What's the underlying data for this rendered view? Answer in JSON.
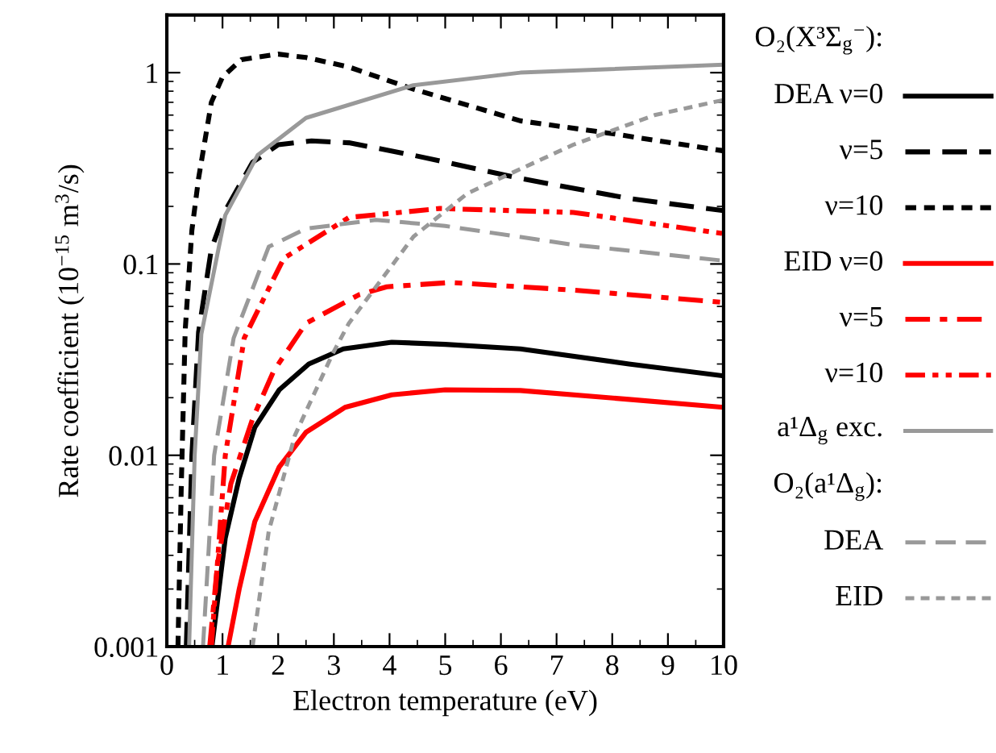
{
  "chart_data": {
    "type": "line",
    "xlabel": "Electron temperature (eV)",
    "ylabel": "Rate coefficient (10$^{−15}$ m$^{3}$/s)",
    "log": "y",
    "xlim": [
      0,
      10
    ],
    "ylim": [
      0.001,
      2.0
    ],
    "xticks": [
      0,
      1,
      2,
      3,
      4,
      5,
      6,
      7,
      8,
      9,
      10
    ],
    "yticks": [
      0.001,
      0.01,
      0.1,
      1
    ],
    "grid": false,
    "legend": "right",
    "marker": "none",
    "annotations": [
      "O₂(X³Σ$_{g}$$^{−}$):",
      "O₂(a¹Δ$_{g}$):"
    ],
    "series": [
      {
        "name": "DEA ν=0",
        "color": "#000000",
        "line_style": "solid",
        "x": [
          0.81,
          1.05,
          1.3,
          1.58,
          2.02,
          2.55,
          3.17,
          4.04,
          5,
          6.35,
          8.3,
          10
        ],
        "values": [
          0.001,
          0.0037,
          0.0076,
          0.014,
          0.022,
          0.03,
          0.036,
          0.039,
          0.038,
          0.036,
          0.03,
          0.026
        ]
      },
      {
        "name": "ν=5",
        "color": "#000000",
        "line_style": "dashed",
        "x": [
          0.35,
          0.45,
          0.57,
          0.8,
          1.05,
          1.54,
          2.0,
          2.6,
          3.27,
          4.43,
          6.35,
          8.3,
          10
        ],
        "values": [
          0.001,
          0.01,
          0.044,
          0.12,
          0.19,
          0.34,
          0.42,
          0.44,
          0.43,
          0.37,
          0.28,
          0.22,
          0.19
        ]
      },
      {
        "name": "ν=10",
        "color": "#000000",
        "line_style": "dotted",
        "x": [
          0.2,
          0.26,
          0.33,
          0.45,
          0.57,
          0.8,
          1.0,
          1.34,
          2.0,
          2.5,
          3.27,
          4.43,
          6.35,
          8,
          10
        ],
        "values": [
          0.001,
          0.007,
          0.045,
          0.15,
          0.28,
          0.7,
          0.95,
          1.17,
          1.25,
          1.2,
          1.07,
          0.82,
          0.56,
          0.48,
          0.39
        ]
      },
      {
        "name": "EID ν=0",
        "color": "#ff0000",
        "line_style": "solid",
        "x": [
          1.1,
          1.3,
          1.58,
          2.02,
          2.5,
          3.2,
          4.04,
          5,
          6.35,
          8.3,
          10
        ],
        "values": [
          0.001,
          0.002,
          0.0045,
          0.0087,
          0.0132,
          0.0178,
          0.0207,
          0.022,
          0.0218,
          0.0196,
          0.0178
        ]
      },
      {
        "name": "ν=5",
        "color": "#ff0000",
        "line_style": "dashdot",
        "x": [
          0.77,
          0.91,
          1.15,
          1.54,
          1.92,
          2.5,
          3.45,
          3.95,
          5.1,
          7.3,
          10
        ],
        "values": [
          0.001,
          0.0027,
          0.0071,
          0.0155,
          0.0276,
          0.049,
          0.069,
          0.076,
          0.08,
          0.073,
          0.063
        ]
      },
      {
        "name": "ν=10",
        "color": "#ff0000",
        "line_style": "dashdotdot",
        "x": [
          0.8,
          1.05,
          1.39,
          2.1,
          3.27,
          4.9,
          7.3,
          10
        ],
        "values": [
          0.001,
          0.01,
          0.041,
          0.107,
          0.175,
          0.195,
          0.186,
          0.144
        ]
      },
      {
        "name": "a¹Δ$_{g}$ exc.",
        "color": "#999999",
        "line_style": "solid",
        "x": [
          0.4,
          0.5,
          0.62,
          1.05,
          1.63,
          2.5,
          4.43,
          6.35,
          10
        ],
        "values": [
          0.001,
          0.01,
          0.043,
          0.18,
          0.37,
          0.58,
          0.86,
          1.0,
          1.1
        ]
      },
      {
        "name": "DEA",
        "color": "#999999",
        "line_style": "dashed",
        "x": [
          0.65,
          0.85,
          1.2,
          1.83,
          2.5,
          3.75,
          5,
          7.3,
          10
        ],
        "values": [
          0.001,
          0.01,
          0.041,
          0.123,
          0.153,
          0.17,
          0.158,
          0.126,
          0.104
        ]
      },
      {
        "name": "EID",
        "color": "#999999",
        "line_style": "dotted",
        "x": [
          1.54,
          1.83,
          2.3,
          2.98,
          3.27,
          4.43,
          5.4,
          7.3,
          8.76,
          10
        ],
        "values": [
          0.001,
          0.004,
          0.0127,
          0.034,
          0.049,
          0.139,
          0.234,
          0.42,
          0.6,
          0.72
        ]
      }
    ]
  }
}
